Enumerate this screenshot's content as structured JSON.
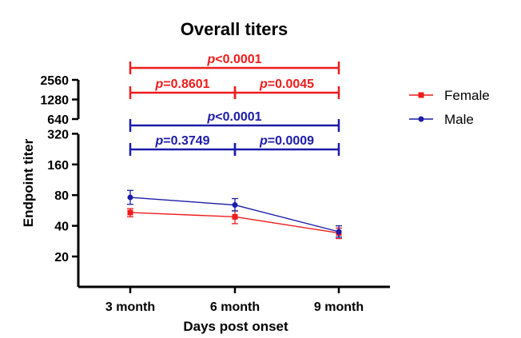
{
  "chart_data": {
    "type": "line",
    "title": "Overall titers",
    "xlabel": "Days post onset",
    "ylabel": "Endpoint titer",
    "y_scale": "log2",
    "y_ticks_lower": [
      20,
      40,
      80,
      160,
      320
    ],
    "y_ticks_upper": [
      640,
      1280,
      2560
    ],
    "categories": [
      "3 month",
      "6 month",
      "9 month"
    ],
    "series": [
      {
        "name": "Female",
        "color": "#ee1c1c",
        "marker": "square",
        "values": [
          54,
          49,
          34
        ],
        "error_low": [
          49,
          42,
          30
        ],
        "error_high": [
          59,
          56,
          38
        ]
      },
      {
        "name": "Male",
        "color": "#1c1ca8",
        "marker": "circle",
        "values": [
          76,
          64,
          35
        ],
        "error_low": [
          65,
          56,
          31
        ],
        "error_high": [
          89,
          74,
          40
        ]
      }
    ],
    "annotations": [
      {
        "from": 0,
        "to": 2,
        "prefix": "p",
        "text": "<0.0001",
        "color": "#ee1c1c"
      },
      {
        "from": 0,
        "to": 1,
        "prefix": "p",
        "text": "=0.8601",
        "color": "#ee1c1c"
      },
      {
        "from": 1,
        "to": 2,
        "prefix": "p",
        "text": "=0.0045",
        "color": "#ee1c1c"
      },
      {
        "from": 0,
        "to": 2,
        "prefix": "p",
        "text": "<0.0001",
        "color": "#1c1ca8"
      },
      {
        "from": 0,
        "to": 1,
        "prefix": "p",
        "text": "=0.3749",
        "color": "#1c1ca8"
      },
      {
        "from": 1,
        "to": 2,
        "prefix": "p",
        "text": "=0.0009",
        "color": "#1c1ca8"
      }
    ],
    "legend_position": "right"
  }
}
